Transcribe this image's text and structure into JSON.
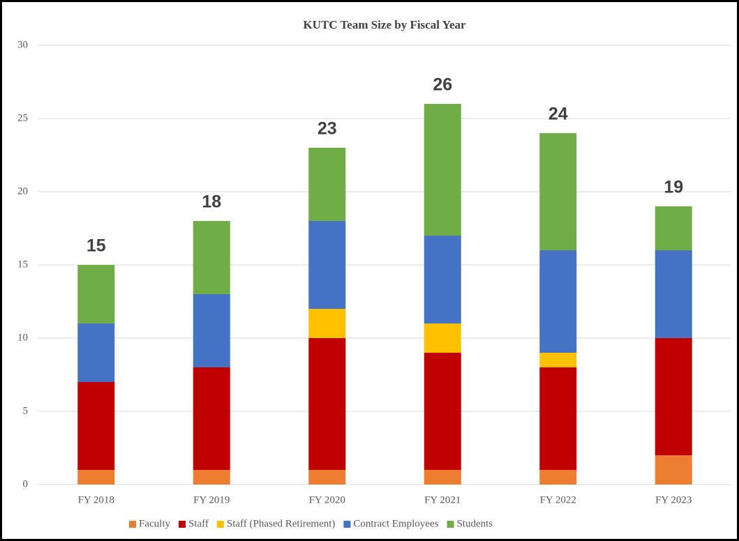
{
  "chart_data": {
    "type": "stacked_bar",
    "title": "KUTC Team Size by Fiscal Year",
    "categories": [
      "FY 2018",
      "FY 2019",
      "FY 2020",
      "FY 2021",
      "FY 2022",
      "FY 2023"
    ],
    "series": [
      {
        "name": "Faculty",
        "color": "#ed7d31",
        "values": [
          1,
          1,
          1,
          1,
          1,
          2
        ]
      },
      {
        "name": "Staff",
        "color": "#c00000",
        "values": [
          6,
          7,
          9,
          8,
          7,
          8
        ]
      },
      {
        "name": "Staff (Phased Retirement)",
        "color": "#ffc000",
        "values": [
          0,
          0,
          2,
          2,
          1,
          0
        ]
      },
      {
        "name": "Contract Employees",
        "color": "#4472c4",
        "values": [
          4,
          5,
          6,
          6,
          7,
          6
        ]
      },
      {
        "name": "Students",
        "color": "#70ad47",
        "values": [
          4,
          5,
          5,
          9,
          8,
          3
        ]
      }
    ],
    "totals": [
      15,
      18,
      23,
      26,
      24,
      19
    ],
    "ylim": [
      0,
      30
    ],
    "yticks": [
      0,
      5,
      10,
      15,
      20,
      25,
      30
    ],
    "grid": true,
    "legend": "bottom"
  }
}
